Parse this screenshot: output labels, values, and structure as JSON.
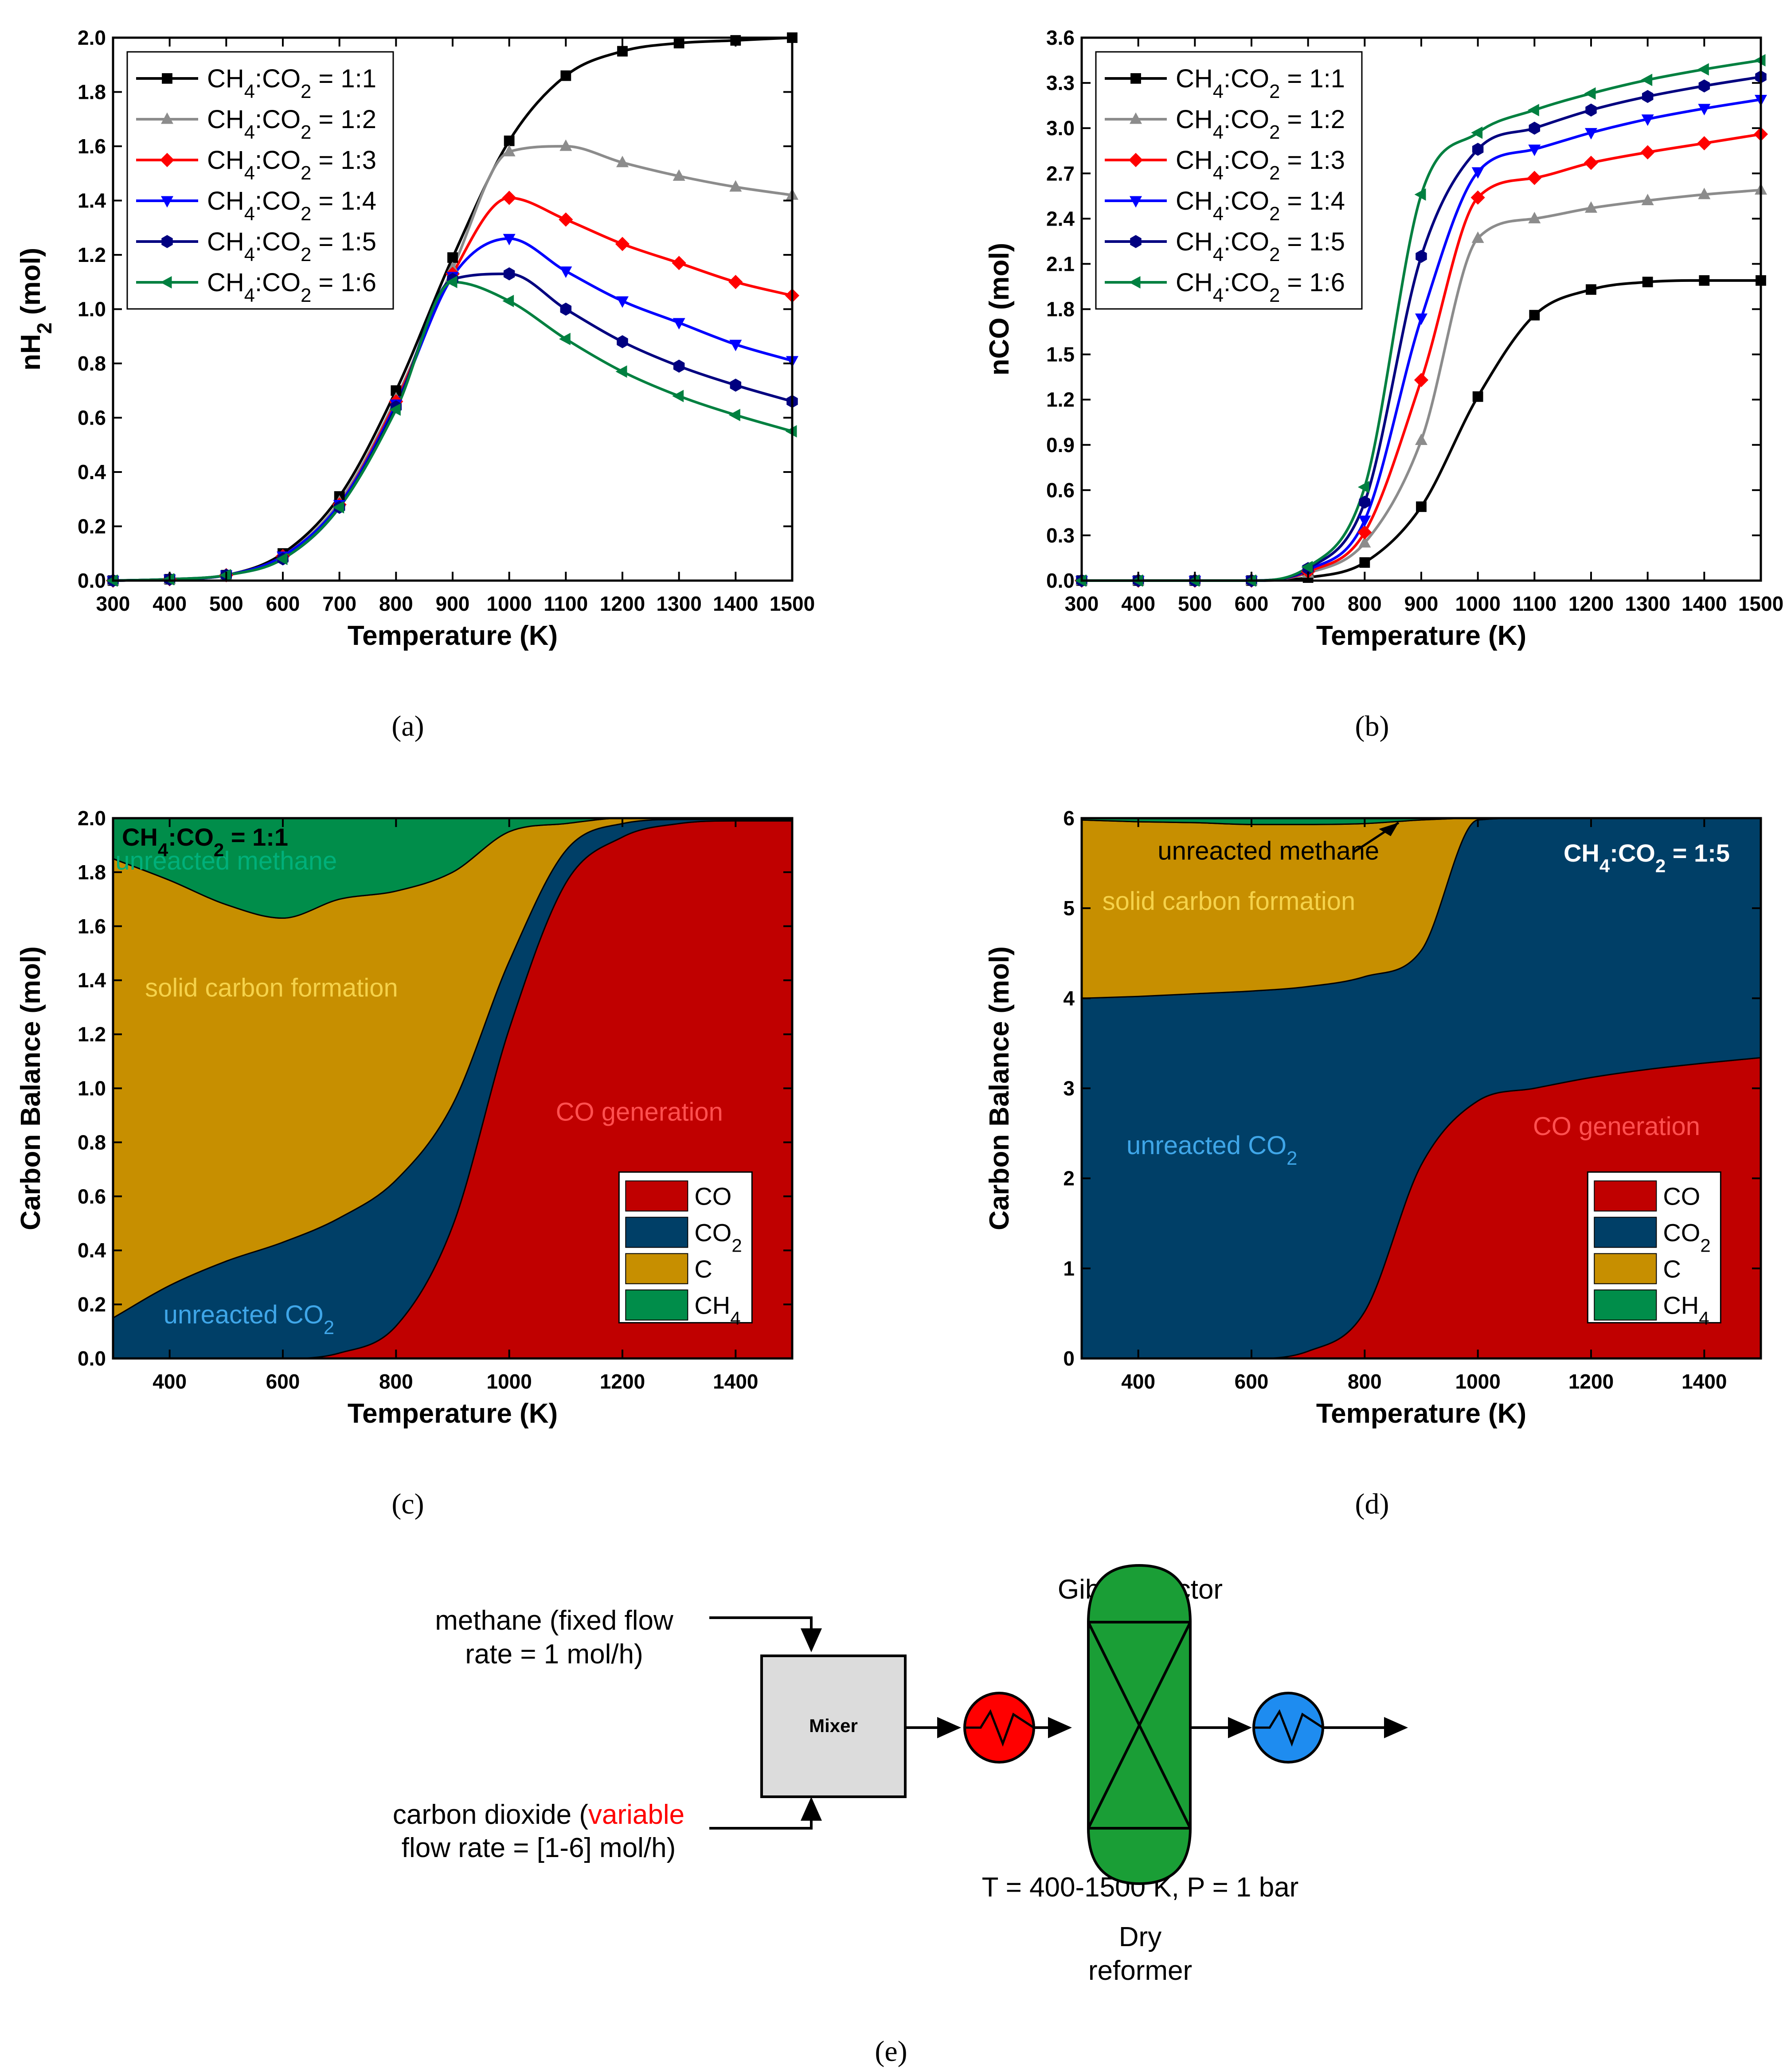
{
  "panels": [
    {
      "caption": "(a)",
      "chart_data": {
        "type": "line",
        "xlabel": "Temperature (K)",
        "ylabel": "nH₂ (mol)",
        "xlim": [
          300,
          1500
        ],
        "ylim": [
          0,
          2.0
        ],
        "xticks": [
          300,
          400,
          500,
          600,
          700,
          800,
          900,
          1000,
          1100,
          1200,
          1300,
          1400,
          1500
        ],
        "yticks": [
          0.0,
          0.2,
          0.4,
          0.6,
          0.8,
          1.0,
          1.2,
          1.4,
          1.6,
          1.8,
          2.0
        ],
        "legend_position": "top-left",
        "x": [
          300,
          400,
          500,
          600,
          700,
          800,
          900,
          1000,
          1100,
          1200,
          1300,
          1400,
          1500
        ],
        "series": [
          {
            "name": "CH₄:CO₂ = 1:1",
            "color": "#000000",
            "marker": "square",
            "values": [
              0.0,
              0.005,
              0.02,
              0.1,
              0.31,
              0.7,
              1.19,
              1.62,
              1.86,
              1.95,
              1.98,
              1.99,
              2.0
            ]
          },
          {
            "name": "CH₄:CO₂ = 1:2",
            "color": "#8c8c8c",
            "marker": "triangle-up",
            "values": [
              0.0,
              0.005,
              0.02,
              0.09,
              0.29,
              0.67,
              1.15,
              1.58,
              1.6,
              1.54,
              1.49,
              1.45,
              1.42
            ]
          },
          {
            "name": "CH₄:CO₂ = 1:3",
            "color": "#ff0000",
            "marker": "diamond",
            "values": [
              0.0,
              0.005,
              0.02,
              0.09,
              0.28,
              0.66,
              1.13,
              1.41,
              1.33,
              1.24,
              1.17,
              1.1,
              1.05
            ]
          },
          {
            "name": "CH₄:CO₂ = 1:4",
            "color": "#0000ff",
            "marker": "triangle-down",
            "values": [
              0.0,
              0.005,
              0.02,
              0.09,
              0.28,
              0.65,
              1.12,
              1.26,
              1.14,
              1.03,
              0.95,
              0.87,
              0.81
            ]
          },
          {
            "name": "CH₄:CO₂ = 1:5",
            "color": "#000080",
            "marker": "hexagon",
            "values": [
              0.0,
              0.005,
              0.02,
              0.08,
              0.27,
              0.64,
              1.11,
              1.13,
              1.0,
              0.88,
              0.79,
              0.72,
              0.66
            ]
          },
          {
            "name": "CH₄:CO₂ = 1:6",
            "color": "#008040",
            "marker": "triangle-left",
            "values": [
              0.0,
              0.005,
              0.02,
              0.08,
              0.27,
              0.63,
              1.1,
              1.03,
              0.89,
              0.77,
              0.68,
              0.61,
              0.55
            ]
          }
        ]
      }
    },
    {
      "caption": "(b)",
      "chart_data": {
        "type": "line",
        "xlabel": "Temperature (K)",
        "ylabel": "nCO (mol)",
        "xlim": [
          300,
          1500
        ],
        "ylim": [
          0,
          3.6
        ],
        "xticks": [
          300,
          400,
          500,
          600,
          700,
          800,
          900,
          1000,
          1100,
          1200,
          1300,
          1400,
          1500
        ],
        "yticks": [
          0.0,
          0.3,
          0.6,
          0.9,
          1.2,
          1.5,
          1.8,
          2.1,
          2.4,
          2.7,
          3.0,
          3.3,
          3.6
        ],
        "legend_position": "top-left",
        "x": [
          300,
          400,
          500,
          600,
          700,
          800,
          900,
          1000,
          1100,
          1200,
          1300,
          1400,
          1500
        ],
        "series": [
          {
            "name": "CH₄:CO₂ = 1:1",
            "color": "#000000",
            "marker": "square",
            "values": [
              0.0,
              0.0,
              0.0,
              0.0,
              0.02,
              0.12,
              0.49,
              1.22,
              1.76,
              1.93,
              1.98,
              1.99,
              1.99
            ]
          },
          {
            "name": "CH₄:CO₂ = 1:2",
            "color": "#8c8c8c",
            "marker": "triangle-up",
            "values": [
              0.0,
              0.0,
              0.0,
              0.0,
              0.05,
              0.25,
              0.93,
              2.27,
              2.4,
              2.47,
              2.52,
              2.56,
              2.59
            ]
          },
          {
            "name": "CH₄:CO₂ = 1:3",
            "color": "#ff0000",
            "marker": "diamond",
            "values": [
              0.0,
              0.0,
              0.0,
              0.0,
              0.06,
              0.32,
              1.33,
              2.54,
              2.67,
              2.77,
              2.84,
              2.9,
              2.96
            ]
          },
          {
            "name": "CH₄:CO₂ = 1:4",
            "color": "#0000ff",
            "marker": "triangle-down",
            "values": [
              0.0,
              0.0,
              0.0,
              0.0,
              0.07,
              0.4,
              1.74,
              2.71,
              2.86,
              2.97,
              3.06,
              3.13,
              3.19
            ]
          },
          {
            "name": "CH₄:CO₂ = 1:5",
            "color": "#000080",
            "marker": "hexagon",
            "values": [
              0.0,
              0.0,
              0.0,
              0.0,
              0.08,
              0.52,
              2.15,
              2.86,
              3.0,
              3.12,
              3.21,
              3.28,
              3.34
            ]
          },
          {
            "name": "CH₄:CO₂ = 1:6",
            "color": "#008040",
            "marker": "triangle-left",
            "values": [
              0.0,
              0.0,
              0.0,
              0.0,
              0.09,
              0.62,
              2.56,
              2.97,
              3.12,
              3.23,
              3.32,
              3.39,
              3.45
            ]
          }
        ]
      }
    },
    {
      "caption": "(c)",
      "chart_data": {
        "type": "area",
        "stacked": true,
        "inset_label": "CH₄:CO₂ = 1:1",
        "xlabel": "Temperature (K)",
        "ylabel": "Carbon Balance (mol)",
        "xlim": [
          300,
          1500
        ],
        "ylim": [
          0,
          2.0
        ],
        "xticks": [
          400,
          600,
          800,
          1000,
          1200,
          1400
        ],
        "yticks": [
          0.0,
          0.2,
          0.4,
          0.6,
          0.8,
          1.0,
          1.2,
          1.4,
          1.6,
          1.8,
          2.0
        ],
        "legend_position": "bottom-right",
        "x": [
          300,
          400,
          500,
          600,
          700,
          800,
          900,
          1000,
          1100,
          1200,
          1300,
          1400,
          1500
        ],
        "series": [
          {
            "name": "CO",
            "color": "#c00000",
            "values": [
              0.0,
              0.0,
              0.0,
              0.0,
              0.02,
              0.12,
              0.49,
              1.22,
              1.76,
              1.93,
              1.98,
              1.99,
              1.99
            ]
          },
          {
            "name": "CO₂",
            "color": "#003f67",
            "values": [
              0.15,
              0.27,
              0.36,
              0.43,
              0.5,
              0.54,
              0.45,
              0.25,
              0.12,
              0.05,
              0.015,
              0.005,
              0.005
            ]
          },
          {
            "name": "C",
            "color": "#c78f00",
            "values": [
              1.7,
              1.5,
              1.32,
              1.2,
              1.18,
              1.07,
              0.86,
              0.48,
              0.1,
              0.02,
              0.005,
              0.0,
              0.0
            ]
          },
          {
            "name": "CH₄",
            "color": "#008d4a",
            "values": [
              0.15,
              0.23,
              0.32,
              0.37,
              0.3,
              0.27,
              0.2,
              0.05,
              0.02,
              0.0,
              0.0,
              0.005,
              0.005
            ]
          }
        ],
        "annotations": [
          {
            "text": "unreacted methane",
            "x": 500,
            "y": 1.81,
            "color": "#00b07a"
          },
          {
            "text": "solid carbon formation",
            "x": 580,
            "y": 1.34,
            "color": "#f5d24a"
          },
          {
            "text": "CO generation",
            "x": 1230,
            "y": 0.88,
            "color": "#ff5050"
          },
          {
            "text": "unreacted CO₂",
            "x": 540,
            "y": 0.13,
            "color": "#3fa6e8"
          }
        ]
      }
    },
    {
      "caption": "(d)",
      "chart_data": {
        "type": "area",
        "stacked": true,
        "inset_label": "CH₄:CO₂ = 1:5",
        "xlabel": "Temperature (K)",
        "ylabel": "Carbon Balance (mol)",
        "xlim": [
          300,
          1500
        ],
        "ylim": [
          0,
          6
        ],
        "xticks": [
          400,
          600,
          800,
          1000,
          1200,
          1400
        ],
        "yticks": [
          0,
          1,
          2,
          3,
          4,
          5,
          6
        ],
        "legend_position": "bottom-right",
        "x": [
          300,
          400,
          500,
          600,
          700,
          800,
          900,
          1000,
          1100,
          1200,
          1300,
          1400,
          1500
        ],
        "series": [
          {
            "name": "CO",
            "color": "#c00000",
            "values": [
              0.0,
              0.0,
              0.0,
              0.0,
              0.08,
              0.52,
              2.15,
              2.86,
              3.0,
              3.12,
              3.21,
              3.28,
              3.34
            ]
          },
          {
            "name": "CO₂",
            "color": "#003f67",
            "values": [
              4.0,
              4.02,
              4.05,
              4.08,
              4.05,
              3.72,
              2.38,
              3.12,
              3.0,
              2.88,
              2.79,
              2.72,
              2.66
            ]
          },
          {
            "name": "C",
            "color": "#c78f00",
            "values": [
              1.98,
              1.94,
              1.9,
              1.85,
              1.8,
              1.7,
              1.45,
              0.02,
              0.0,
              0.0,
              0.0,
              0.0,
              0.0
            ]
          },
          {
            "name": "CH₄",
            "color": "#008d4a",
            "values": [
              0.02,
              0.04,
              0.05,
              0.07,
              0.07,
              0.06,
              0.02,
              0.0,
              0.0,
              0.0,
              0.0,
              0.0,
              0.0
            ]
          }
        ],
        "annotations": [
          {
            "text": "unreacted methane",
            "x": 630,
            "y": 5.54,
            "color": "#000000"
          },
          {
            "text": "solid carbon formation",
            "x": 560,
            "y": 4.98,
            "color": "#f5d24a"
          },
          {
            "text": "CO generation",
            "x": 1245,
            "y": 2.48,
            "color": "#ff5050"
          },
          {
            "text": "unreacted CO₂",
            "x": 530,
            "y": 2.27,
            "color": "#3fa6e8"
          }
        ]
      }
    }
  ],
  "diagram": {
    "caption": "(e)",
    "methane_line1": "methane (fixed flow",
    "methane_line2": "rate = 1 mol/h)",
    "co2_line1_a": "carbon dioxide (",
    "co2_line1_b": "variable",
    "co2_line2": "flow rate = [1-6] mol/h)",
    "mixer_label": "Mixer",
    "reactor_title": "Gibbs reactor",
    "conditions": "T = 400-1500 K, P = 1 bar",
    "reformer_line1": "Dry",
    "reformer_line2": "reformer",
    "colors": {
      "heater": "#ff0000",
      "cooler": "#1e8cf0",
      "reactor": "#1a9e36",
      "variable": "#ff0000"
    }
  }
}
